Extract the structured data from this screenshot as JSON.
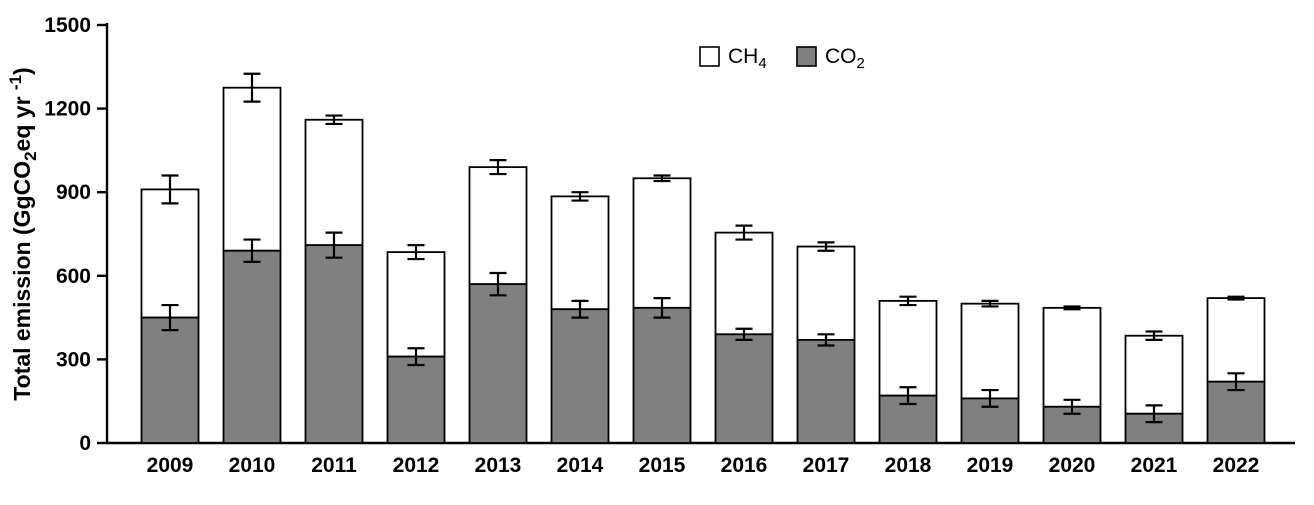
{
  "chart_data": {
    "type": "bar",
    "stacked": true,
    "title": "",
    "xlabel": "",
    "ylabel": "Total emission (GgCO2eq yr-1)",
    "ylabel_segments": [
      {
        "text": "Total emission (GgCO",
        "style": "normal"
      },
      {
        "text": "2",
        "style": "sub"
      },
      {
        "text": "eq yr",
        "style": "normal"
      },
      {
        "text": "-1",
        "style": "sup"
      },
      {
        "text": ")",
        "style": "normal"
      }
    ],
    "categories": [
      "2009",
      "2010",
      "2011",
      "2012",
      "2013",
      "2014",
      "2015",
      "2016",
      "2017",
      "2018",
      "2019",
      "2020",
      "2021",
      "2022"
    ],
    "series": [
      {
        "name": "CO2",
        "label": {
          "base": "CO",
          "sub": "2"
        },
        "color": "#808080",
        "values": [
          450,
          690,
          710,
          310,
          570,
          480,
          485,
          390,
          370,
          170,
          160,
          130,
          105,
          220
        ],
        "errors": [
          45,
          40,
          45,
          30,
          40,
          30,
          35,
          20,
          20,
          30,
          30,
          25,
          30,
          30
        ]
      },
      {
        "name": "CH4",
        "label": {
          "base": "CH",
          "sub": "4"
        },
        "color": "#ffffff",
        "values": [
          460,
          585,
          450,
          375,
          420,
          405,
          465,
          365,
          335,
          340,
          340,
          355,
          280,
          300
        ]
      }
    ],
    "totals": [
      910,
      1275,
      1160,
      685,
      990,
      885,
      950,
      755,
      705,
      510,
      500,
      485,
      385,
      520
    ],
    "total_errors": [
      50,
      50,
      15,
      25,
      25,
      15,
      10,
      25,
      15,
      15,
      10,
      5,
      15,
      5
    ],
    "ylim": [
      0,
      1500
    ],
    "yticks": [
      0,
      300,
      600,
      900,
      1200,
      1500
    ],
    "legend_order": [
      "CH4",
      "CO2"
    ],
    "legend_position": "top-center",
    "grid": false,
    "bar_stroke": "#000000",
    "error_color": "#000000",
    "axis_color": "#000000"
  }
}
